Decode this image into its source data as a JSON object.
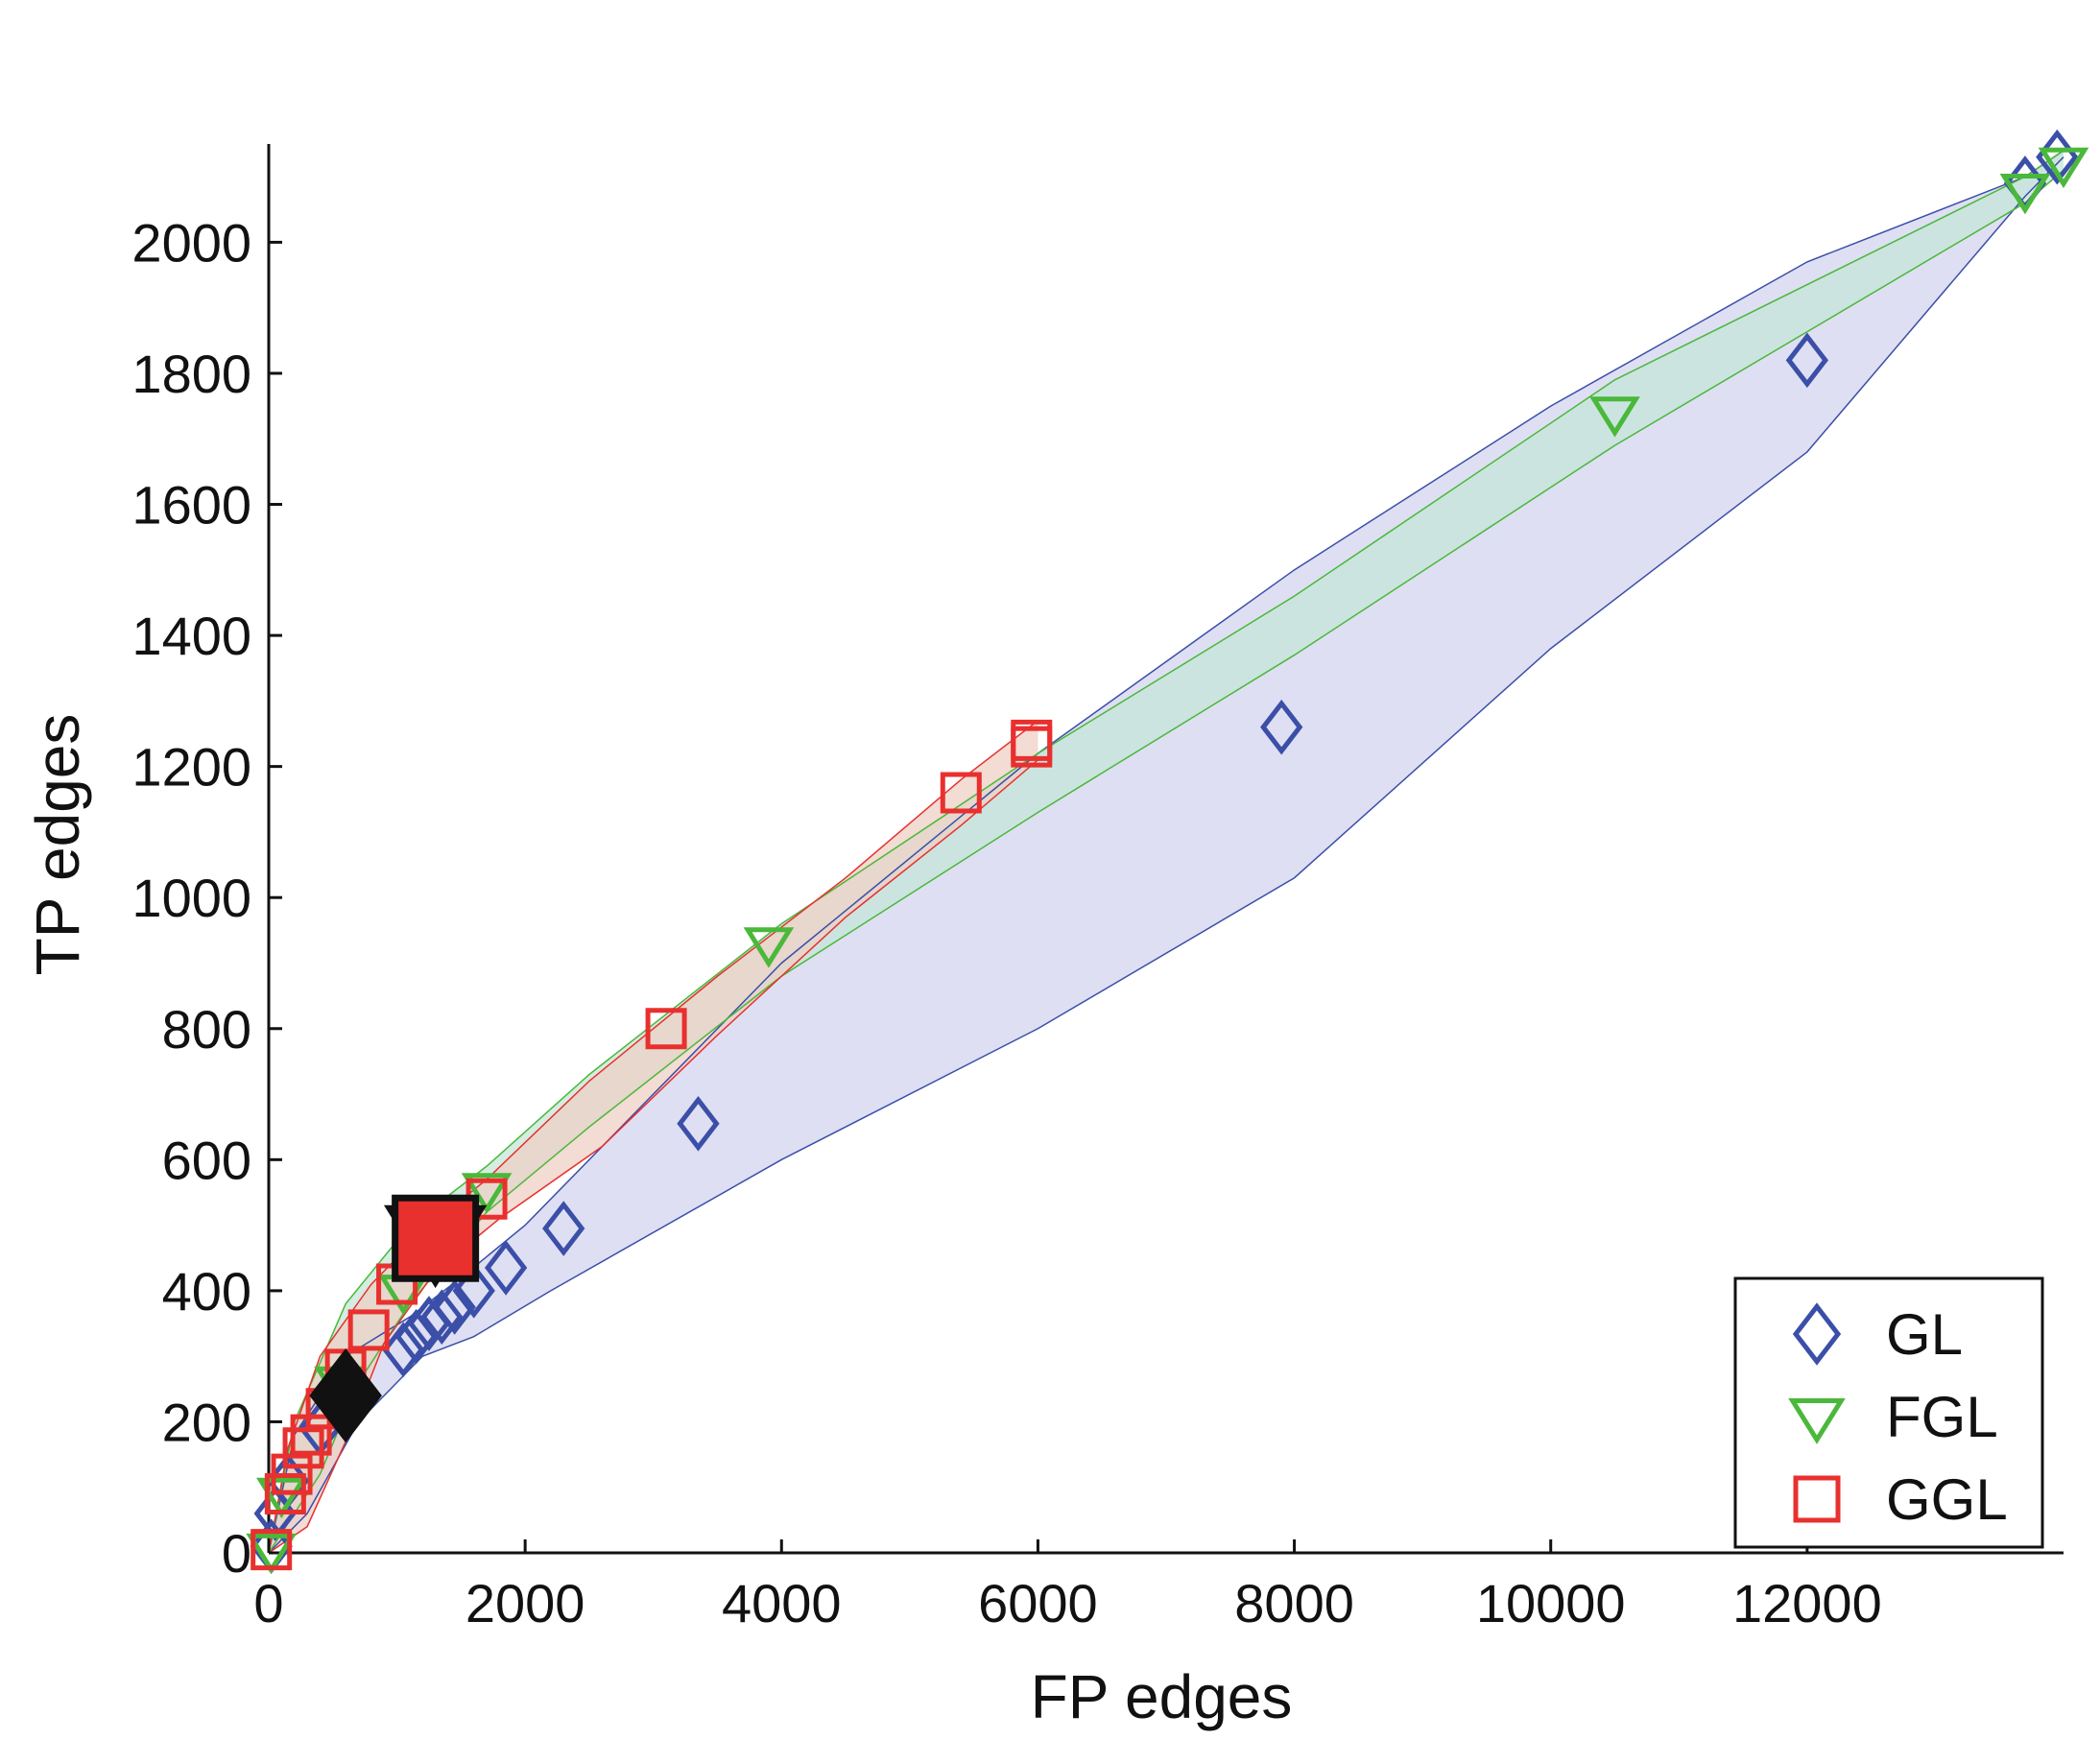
{
  "chart_data": {
    "type": "scatter",
    "xlabel": "FP edges",
    "ylabel": "TP edges",
    "xlim": [
      0,
      14000
    ],
    "ylim": [
      0,
      2150
    ],
    "xticks": [
      0,
      2000,
      4000,
      6000,
      8000,
      10000,
      12000
    ],
    "yticks": [
      0,
      200,
      400,
      600,
      800,
      1000,
      1200,
      1400,
      1600,
      1800,
      2000
    ],
    "legend": {
      "placement": "bottom-right",
      "entries": [
        "GL",
        "FGL",
        "GGL"
      ]
    },
    "series": [
      {
        "name": "GL",
        "marker": "diamond",
        "color": "#3b4fa8",
        "band_fill": "#d4d4ef",
        "points": [
          [
            20,
            10
          ],
          [
            50,
            60
          ],
          [
            150,
            110
          ],
          [
            400,
            190
          ],
          [
            650,
            240
          ],
          [
            1050,
            310
          ],
          [
            1150,
            330
          ],
          [
            1250,
            350
          ],
          [
            1350,
            360
          ],
          [
            1450,
            375
          ],
          [
            1600,
            400
          ],
          [
            1850,
            435
          ],
          [
            2300,
            495
          ],
          [
            3350,
            655
          ],
          [
            7900,
            1260
          ],
          [
            12000,
            1820
          ],
          [
            13700,
            2090
          ],
          [
            13950,
            2130
          ]
        ],
        "band_upper": [
          [
            0,
            0
          ],
          [
            200,
            180
          ],
          [
            600,
            300
          ],
          [
            1100,
            360
          ],
          [
            1500,
            420
          ],
          [
            2000,
            500
          ],
          [
            3000,
            700
          ],
          [
            4000,
            900
          ],
          [
            6000,
            1220
          ],
          [
            8000,
            1500
          ],
          [
            10000,
            1750
          ],
          [
            12000,
            1970
          ],
          [
            13700,
            2100
          ],
          [
            14000,
            2140
          ]
        ],
        "band_lower": [
          [
            0,
            0
          ],
          [
            300,
            60
          ],
          [
            700,
            200
          ],
          [
            1200,
            300
          ],
          [
            1600,
            330
          ],
          [
            2200,
            400
          ],
          [
            4000,
            600
          ],
          [
            6000,
            800
          ],
          [
            8000,
            1030
          ],
          [
            10000,
            1380
          ],
          [
            12000,
            1680
          ],
          [
            13700,
            2070
          ],
          [
            14000,
            2130
          ]
        ]
      },
      {
        "name": "FGL",
        "marker": "triangle-down",
        "color": "#4ab83a",
        "band_fill": "#c6e6d8",
        "points": [
          [
            20,
            5
          ],
          [
            100,
            90
          ],
          [
            550,
            260
          ],
          [
            1050,
            400
          ],
          [
            1700,
            555
          ],
          [
            3900,
            930
          ],
          [
            10500,
            1740
          ],
          [
            13700,
            2080
          ],
          [
            14000,
            2120
          ]
        ],
        "band_upper": [
          [
            0,
            0
          ],
          [
            200,
            200
          ],
          [
            600,
            380
          ],
          [
            1100,
            500
          ],
          [
            1700,
            590
          ],
          [
            2500,
            730
          ],
          [
            4000,
            960
          ],
          [
            6000,
            1220
          ],
          [
            8000,
            1460
          ],
          [
            10500,
            1790
          ],
          [
            13700,
            2100
          ],
          [
            14000,
            2140
          ]
        ],
        "band_lower": [
          [
            0,
            0
          ],
          [
            400,
            120
          ],
          [
            700,
            260
          ],
          [
            1100,
            380
          ],
          [
            1700,
            520
          ],
          [
            2500,
            650
          ],
          [
            4000,
            880
          ],
          [
            6000,
            1130
          ],
          [
            8000,
            1370
          ],
          [
            10500,
            1690
          ],
          [
            13700,
            2060
          ],
          [
            14000,
            2110
          ]
        ]
      },
      {
        "name": "GGL",
        "marker": "square",
        "color": "#e8302e",
        "band_fill": "#eed0c4",
        "points": [
          [
            20,
            5
          ],
          [
            130,
            90
          ],
          [
            180,
            120
          ],
          [
            270,
            160
          ],
          [
            330,
            180
          ],
          [
            450,
            220
          ],
          [
            600,
            280
          ],
          [
            780,
            340
          ],
          [
            1000,
            410
          ],
          [
            1700,
            540
          ],
          [
            3100,
            800
          ],
          [
            5400,
            1160
          ],
          [
            5950,
            1230
          ],
          [
            5950,
            1240
          ]
        ],
        "band_upper": [
          [
            0,
            0
          ],
          [
            150,
            160
          ],
          [
            400,
            300
          ],
          [
            800,
            410
          ],
          [
            1200,
            490
          ],
          [
            1700,
            570
          ],
          [
            2500,
            720
          ],
          [
            3500,
            880
          ],
          [
            4500,
            1030
          ],
          [
            5400,
            1180
          ],
          [
            6000,
            1270
          ]
        ],
        "band_lower": [
          [
            0,
            0
          ],
          [
            300,
            40
          ],
          [
            600,
            170
          ],
          [
            900,
            320
          ],
          [
            1300,
            430
          ],
          [
            1800,
            510
          ],
          [
            2600,
            620
          ],
          [
            3500,
            790
          ],
          [
            4500,
            970
          ],
          [
            5400,
            1110
          ],
          [
            6000,
            1210
          ]
        ]
      }
    ],
    "highlight_points": [
      {
        "x": 600,
        "y": 240,
        "marker": "diamond",
        "color": "#111111"
      },
      {
        "x": 1300,
        "y": 480,
        "marker": "triangle-down",
        "color": "#111111"
      },
      {
        "x": 1300,
        "y": 480,
        "marker": "square",
        "color": "#e8302e"
      }
    ]
  }
}
